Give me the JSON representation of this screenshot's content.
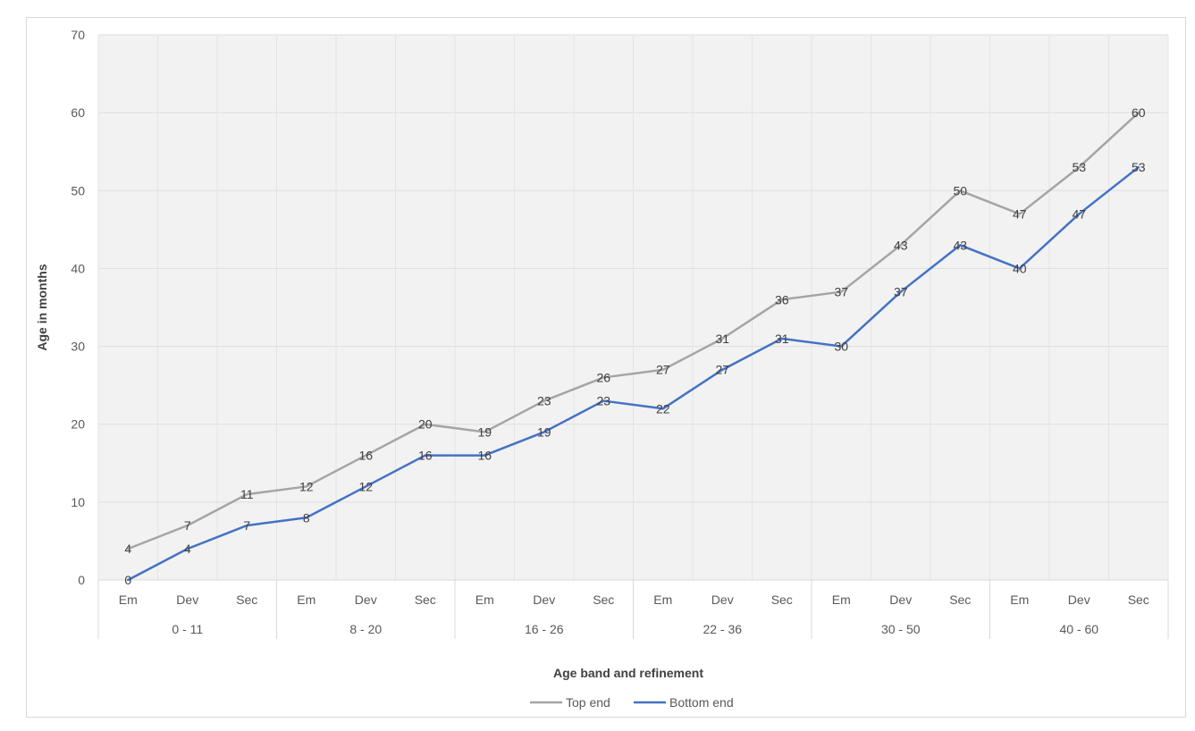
{
  "chart_data": {
    "type": "line",
    "title": "",
    "xlabel": "Age band and refinement",
    "ylabel": "Age in months",
    "ylim": [
      0,
      70
    ],
    "yticks": [
      0,
      10,
      20,
      30,
      40,
      50,
      60,
      70
    ],
    "grid": true,
    "legend_position": "bottom",
    "groups": [
      {
        "label": "0 - 11",
        "categories": [
          "Em",
          "Dev",
          "Sec"
        ]
      },
      {
        "label": "8 - 20",
        "categories": [
          "Em",
          "Dev",
          "Sec"
        ]
      },
      {
        "label": "16 - 26",
        "categories": [
          "Em",
          "Dev",
          "Sec"
        ]
      },
      {
        "label": "22 - 36",
        "categories": [
          "Em",
          "Dev",
          "Sec"
        ]
      },
      {
        "label": "30 - 50",
        "categories": [
          "Em",
          "Dev",
          "Sec"
        ]
      },
      {
        "label": "40 - 60",
        "categories": [
          "Em",
          "Dev",
          "Sec"
        ]
      }
    ],
    "series": [
      {
        "name": "Top end",
        "color": "#a5a5a5",
        "values": [
          4,
          7,
          11,
          12,
          16,
          20,
          19,
          23,
          26,
          27,
          31,
          36,
          37,
          43,
          50,
          47,
          53,
          60
        ]
      },
      {
        "name": "Bottom end",
        "color": "#4472c4",
        "values": [
          0,
          4,
          7,
          8,
          12,
          16,
          16,
          19,
          23,
          22,
          27,
          31,
          30,
          37,
          43,
          40,
          47,
          53
        ]
      }
    ]
  }
}
